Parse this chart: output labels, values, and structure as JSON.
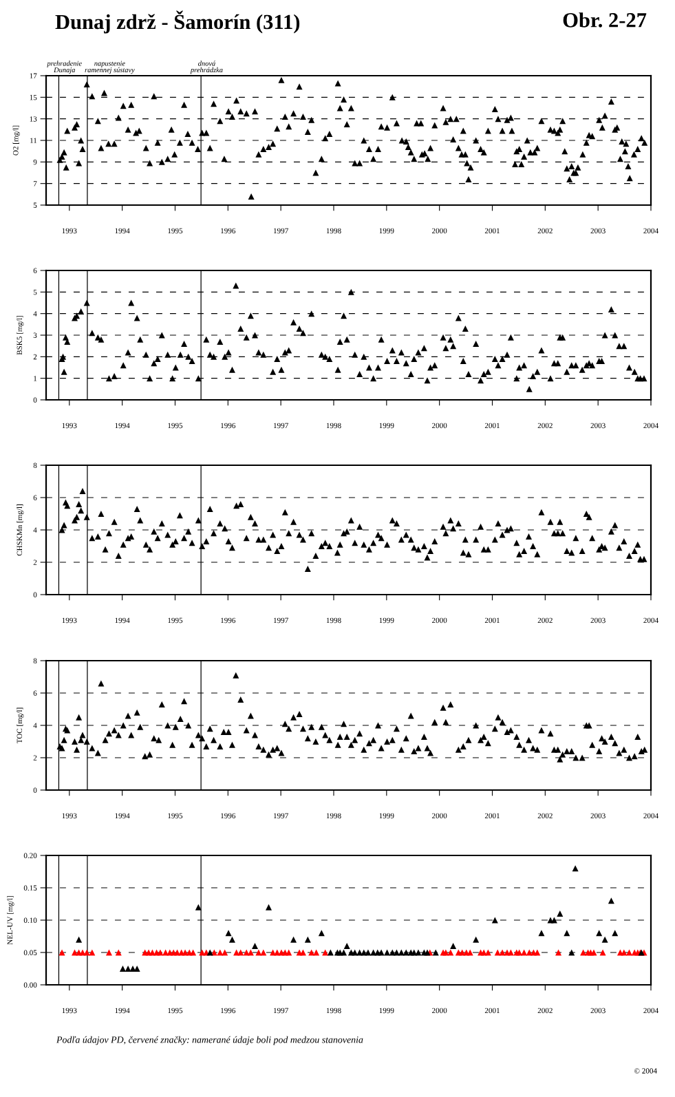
{
  "chart_data": [
    {
      "type": "scatter",
      "title": "Dunaj zdrž - Šamorín (311)",
      "subtitle": "Obr. 2-27",
      "ylabel": "O2 [mg/l]",
      "xlim": [
        1992.56,
        2004.0
      ],
      "xticks": [
        1993,
        1994,
        1995,
        1996,
        1997,
        1998,
        1999,
        2000,
        2001,
        2002,
        2003,
        2004
      ],
      "ylim": [
        5,
        17
      ],
      "yticks": [
        5,
        7,
        9,
        11,
        13,
        15,
        17
      ],
      "grid": "y",
      "marker": "triangle",
      "ref_lines": [
        {
          "axis": "x",
          "value": 1992.8,
          "label": "prehradenie Dunaja",
          "color": "#000000"
        },
        {
          "axis": "x",
          "value": 1993.34,
          "label": "napustenie ramennej sústavy",
          "color": "#000000"
        },
        {
          "axis": "x",
          "value": 1995.49,
          "label": "dnová prehrádzka",
          "color": "#000000"
        }
      ],
      "series": [
        {
          "color": "#000000",
          "x": [
            1992.82,
            1992.86,
            1992.9,
            1992.94,
            1992.96,
            1993.1,
            1993.14,
            1993.18,
            1993.22,
            1993.25,
            1993.33,
            1993.43,
            1993.54,
            1993.6,
            1993.66,
            1993.74,
            1993.85,
            1993.93,
            1994.02,
            1994.11,
            1994.17,
            1994.26,
            1994.32,
            1994.45,
            1994.52,
            1994.6,
            1994.67,
            1994.75,
            1994.86,
            1994.93,
            1994.99,
            1995.09,
            1995.17,
            1995.24,
            1995.32,
            1995.43,
            1995.51,
            1995.59,
            1995.66,
            1995.73,
            1995.85,
            1995.93,
            1996.01,
            1996.08,
            1996.16,
            1996.24,
            1996.35,
            1996.44,
            1996.51,
            1996.58,
            1996.67,
            1996.77,
            1996.85,
            1996.93,
            1997.01,
            1997.08,
            1997.15,
            1997.24,
            1997.35,
            1997.42,
            1997.51,
            1997.58,
            1997.66,
            1997.77,
            1997.84,
            1997.92,
            1998.08,
            1998.12,
            1998.19,
            1998.25,
            1998.33,
            1998.4,
            1998.49,
            1998.57,
            1998.67,
            1998.75,
            1998.84,
            1998.9,
            1999.01,
            1999.11,
            1999.19,
            1999.29,
            1999.37,
            1999.41,
            1999.46,
            1999.52,
            1999.57,
            1999.65,
            1999.67,
            1999.72,
            1999.78,
            1999.83,
            1999.91,
            2000.07,
            2000.12,
            2000.21,
            2000.32,
            2000.26,
            2000.36,
            2000.42,
            2000.45,
            2000.49,
            2000.52,
            2000.59,
            2000.55,
            2000.69,
            2000.78,
            2000.84,
            2000.92,
            2001.05,
            2001.11,
            2001.19,
            2001.28,
            2001.35,
            2001.37,
            2001.43,
            2001.46,
            2001.51,
            2001.55,
            2001.6,
            2001.66,
            2001.72,
            2001.8,
            2001.85,
            2001.93,
            2002.1,
            2002.17,
            2002.24,
            2002.28,
            2002.33,
            2002.37,
            2002.41,
            2002.46,
            2002.5,
            2002.54,
            2002.58,
            2002.62,
            2002.71,
            2002.78,
            2002.83,
            2002.89,
            2003.02,
            2003.08,
            2003.13,
            2003.25,
            2003.32,
            2003.36,
            2003.42,
            2003.45,
            2003.51,
            2003.53,
            2003.57,
            2003.6,
            2003.68,
            2003.75,
            2003.82,
            2003.88
          ],
          "values": [
            9.2,
            9.5,
            9.9,
            8.5,
            11.9,
            12.2,
            12.5,
            8.9,
            11.0,
            10.2,
            16.2,
            15.1,
            12.8,
            10.3,
            15.4,
            10.7,
            10.7,
            13.1,
            14.2,
            12.0,
            14.3,
            11.7,
            11.9,
            10.3,
            8.9,
            15.1,
            10.8,
            9.0,
            9.3,
            12.0,
            9.7,
            10.8,
            14.3,
            11.6,
            10.8,
            10.2,
            11.7,
            11.7,
            10.3,
            14.4,
            12.8,
            9.3,
            13.7,
            13.2,
            14.7,
            13.7,
            13.5,
            5.8,
            13.7,
            9.7,
            10.2,
            10.4,
            10.7,
            12.1,
            16.6,
            13.2,
            12.3,
            13.5,
            16.0,
            13.2,
            11.8,
            12.9,
            8.0,
            9.3,
            11.2,
            11.6,
            16.3,
            14.0,
            14.8,
            12.5,
            14.0,
            8.9,
            8.9,
            11.0,
            10.2,
            9.3,
            10.2,
            12.3,
            12.2,
            15.0,
            12.6,
            11.0,
            10.9,
            10.4,
            9.9,
            9.3,
            12.6,
            12.6,
            9.7,
            9.8,
            9.3,
            10.3,
            12.4,
            14.0,
            12.7,
            13.0,
            13.0,
            11.1,
            10.3,
            9.7,
            11.9,
            9.7,
            8.9,
            8.5,
            7.4,
            11.0,
            10.2,
            9.9,
            11.9,
            13.9,
            13.0,
            11.9,
            12.9,
            13.1,
            11.9,
            8.8,
            10.0,
            10.2,
            8.8,
            9.5,
            11.0,
            9.9,
            9.9,
            10.3,
            12.8,
            12.0,
            11.9,
            11.7,
            12.0,
            12.8,
            10.0,
            8.4,
            7.4,
            8.6,
            8.0,
            8.0,
            8.5,
            9.7,
            10.8,
            11.5,
            11.4,
            12.9,
            12.2,
            13.3,
            14.6,
            12.0,
            12.2,
            9.3,
            10.9,
            10.0,
            10.7,
            8.6,
            7.5,
            9.7,
            10.2,
            11.2,
            10.8
          ]
        }
      ]
    },
    {
      "type": "scatter",
      "ylabel": "BSK5 [mg/l]",
      "xlim": [
        1992.56,
        2004.0
      ],
      "xticks": [
        1993,
        1994,
        1995,
        1996,
        1997,
        1998,
        1999,
        2000,
        2001,
        2002,
        2003,
        2004
      ],
      "ylim": [
        0,
        6
      ],
      "yticks": [
        0,
        1,
        2,
        3,
        4,
        5,
        6
      ],
      "grid": "y",
      "marker": "triangle",
      "ref_lines": [
        {
          "axis": "x",
          "value": 1992.8,
          "color": "#000000"
        },
        {
          "axis": "x",
          "value": 1993.34,
          "color": "#000000"
        },
        {
          "axis": "x",
          "value": 1995.49,
          "color": "#000000"
        }
      ],
      "series": [
        {
          "color": "#000000",
          "x": [
            1992.86,
            1992.88,
            1992.9,
            1992.93,
            1992.96,
            1993.1,
            1993.14,
            1993.22,
            1993.33,
            1993.43,
            1993.54,
            1993.6,
            1993.75,
            1993.85,
            1994.02,
            1994.11,
            1994.17,
            1994.28,
            1994.34,
            1994.45,
            1994.52,
            1994.6,
            1994.67,
            1994.75,
            1994.86,
            1994.95,
            1995.01,
            1995.1,
            1995.17,
            1995.25,
            1995.32,
            1995.44,
            1995.59,
            1995.66,
            1995.73,
            1995.85,
            1995.94,
            1996.01,
            1996.08,
            1996.15,
            1996.24,
            1996.35,
            1996.43,
            1996.51,
            1996.58,
            1996.67,
            1996.85,
            1996.93,
            1997.01,
            1997.08,
            1997.15,
            1997.24,
            1997.35,
            1997.42,
            1997.58,
            1997.77,
            1997.84,
            1997.92,
            1998.08,
            1998.12,
            1998.19,
            1998.25,
            1998.33,
            1998.4,
            1998.49,
            1998.57,
            1998.67,
            1998.75,
            1998.84,
            1998.9,
            1999.01,
            1999.11,
            1999.19,
            1999.28,
            1999.37,
            1999.46,
            1999.52,
            1999.6,
            1999.71,
            1999.77,
            1999.83,
            1999.91,
            2000.07,
            2000.12,
            2000.21,
            2000.26,
            2000.36,
            2000.45,
            2000.49,
            2000.55,
            2000.69,
            2000.78,
            2000.84,
            2000.92,
            2001.05,
            2001.11,
            2001.19,
            2001.28,
            2001.35,
            2001.46,
            2001.51,
            2001.6,
            2001.7,
            2001.77,
            2001.85,
            2001.93,
            2002.1,
            2002.17,
            2002.24,
            2002.28,
            2002.33,
            2002.41,
            2002.5,
            2002.58,
            2002.7,
            2002.78,
            2002.83,
            2002.89,
            2003.02,
            2003.07,
            2003.13,
            2003.25,
            2003.32,
            2003.4,
            2003.49,
            2003.59,
            2003.69,
            2003.75,
            2003.8,
            2003.87
          ],
          "values": [
            1.9,
            2.0,
            1.3,
            2.9,
            2.7,
            3.8,
            3.9,
            4.1,
            4.5,
            3.1,
            2.9,
            2.8,
            1.0,
            1.1,
            1.6,
            2.2,
            4.5,
            3.8,
            2.8,
            2.1,
            1.0,
            1.7,
            1.9,
            3.0,
            2.1,
            1.0,
            1.5,
            2.1,
            2.6,
            2.0,
            1.8,
            1.0,
            2.8,
            2.1,
            2.0,
            2.7,
            2.0,
            2.2,
            1.4,
            5.3,
            3.3,
            2.9,
            3.9,
            3.0,
            2.2,
            2.1,
            1.3,
            1.9,
            1.4,
            2.2,
            2.3,
            3.6,
            3.3,
            3.1,
            4.0,
            2.1,
            2.0,
            1.9,
            1.4,
            2.7,
            3.9,
            2.8,
            5.0,
            2.1,
            1.2,
            2.0,
            1.5,
            1.0,
            1.5,
            2.8,
            1.8,
            2.3,
            1.8,
            2.2,
            1.7,
            1.2,
            1.9,
            2.2,
            2.4,
            0.9,
            1.5,
            1.6,
            2.9,
            2.4,
            2.8,
            2.5,
            3.8,
            1.8,
            3.3,
            1.2,
            2.6,
            0.9,
            1.2,
            1.3,
            1.9,
            1.6,
            1.9,
            2.1,
            2.9,
            1.0,
            1.5,
            1.6,
            0.5,
            1.1,
            1.3,
            2.3,
            1.0,
            1.7,
            1.7,
            2.9,
            2.9,
            1.3,
            1.6,
            1.6,
            1.4,
            1.6,
            1.7,
            1.6,
            1.8,
            1.8,
            3.0,
            4.2,
            3.0,
            2.5,
            2.5,
            1.5,
            1.3,
            1.0,
            1.0,
            1.0
          ]
        }
      ]
    },
    {
      "type": "scatter",
      "ylabel": "CHSKMn [mg/l]",
      "xlim": [
        1992.56,
        2004.0
      ],
      "xticks": [
        1993,
        1994,
        1995,
        1996,
        1997,
        1998,
        1999,
        2000,
        2001,
        2002,
        2003,
        2004
      ],
      "ylim": [
        0,
        8
      ],
      "yticks": [
        0,
        2,
        4,
        6,
        8
      ],
      "grid": "y",
      "marker": "triangle",
      "ref_lines": [
        {
          "axis": "x",
          "value": 1992.8,
          "color": "#000000"
        },
        {
          "axis": "x",
          "value": 1993.34,
          "color": "#000000"
        },
        {
          "axis": "x",
          "value": 1995.49,
          "color": "#000000"
        }
      ],
      "series": [
        {
          "color": "#000000",
          "x": [
            1992.86,
            1992.9,
            1992.93,
            1992.96,
            1993.1,
            1993.14,
            1993.18,
            1993.22,
            1993.25,
            1993.33,
            1993.43,
            1993.54,
            1993.6,
            1993.68,
            1993.75,
            1993.85,
            1993.93,
            1994.02,
            1994.11,
            1994.17,
            1994.28,
            1994.34,
            1994.45,
            1994.52,
            1994.6,
            1994.67,
            1994.75,
            1994.86,
            1994.95,
            1995.01,
            1995.09,
            1995.17,
            1995.25,
            1995.32,
            1995.44,
            1995.51,
            1995.59,
            1995.66,
            1995.73,
            1995.85,
            1995.94,
            1996.01,
            1996.08,
            1996.16,
            1996.24,
            1996.35,
            1996.43,
            1996.51,
            1996.58,
            1996.67,
            1996.77,
            1996.85,
            1996.93,
            1997.01,
            1997.08,
            1997.15,
            1997.24,
            1997.35,
            1997.42,
            1997.51,
            1997.58,
            1997.66,
            1997.77,
            1997.84,
            1997.92,
            1998.07,
            1998.12,
            1998.19,
            1998.25,
            1998.33,
            1998.4,
            1998.49,
            1998.57,
            1998.67,
            1998.75,
            1998.84,
            1998.9,
            1999.01,
            1999.11,
            1999.19,
            1999.28,
            1999.37,
            1999.46,
            1999.52,
            1999.6,
            1999.71,
            1999.77,
            1999.83,
            1999.91,
            2000.07,
            2000.12,
            2000.21,
            2000.26,
            2000.36,
            2000.45,
            2000.49,
            2000.55,
            2000.69,
            2000.78,
            2000.84,
            2000.92,
            2001.05,
            2001.11,
            2001.19,
            2001.28,
            2001.35,
            2001.46,
            2001.51,
            2001.6,
            2001.69,
            2001.77,
            2001.85,
            2001.93,
            2002.1,
            2002.17,
            2002.24,
            2002.28,
            2002.33,
            2002.41,
            2002.5,
            2002.58,
            2002.7,
            2002.78,
            2002.83,
            2002.89,
            2003.02,
            2003.07,
            2003.13,
            2003.25,
            2003.32,
            2003.4,
            2003.49,
            2003.59,
            2003.69,
            2003.75,
            2003.8,
            2003.87
          ],
          "values": [
            4.0,
            4.3,
            5.7,
            5.5,
            4.6,
            4.8,
            5.6,
            5.2,
            6.4,
            4.8,
            3.5,
            3.6,
            5.0,
            2.8,
            3.8,
            4.5,
            2.4,
            3.1,
            3.5,
            3.6,
            5.3,
            4.6,
            3.1,
            2.8,
            3.9,
            3.5,
            4.4,
            3.7,
            3.1,
            3.3,
            4.9,
            3.5,
            3.9,
            3.2,
            4.6,
            3.0,
            3.3,
            5.3,
            3.8,
            4.4,
            4.1,
            3.3,
            2.9,
            5.5,
            5.6,
            3.5,
            4.8,
            4.4,
            3.4,
            3.4,
            2.9,
            3.7,
            2.7,
            3.0,
            5.1,
            3.8,
            4.5,
            3.7,
            3.4,
            1.6,
            3.8,
            2.4,
            3.0,
            3.2,
            3.0,
            2.6,
            3.1,
            3.8,
            3.9,
            4.6,
            3.2,
            4.2,
            3.1,
            2.8,
            3.2,
            3.7,
            3.5,
            3.1,
            4.6,
            4.4,
            3.4,
            3.7,
            3.4,
            2.9,
            2.8,
            3.0,
            2.3,
            2.7,
            3.3,
            4.2,
            3.8,
            4.6,
            4.1,
            4.4,
            2.6,
            3.4,
            2.5,
            3.4,
            4.2,
            2.8,
            2.8,
            3.4,
            4.4,
            3.7,
            4.0,
            4.1,
            3.2,
            2.5,
            2.7,
            3.6,
            3.0,
            2.5,
            5.1,
            4.5,
            3.8,
            3.8,
            4.5,
            3.8,
            2.7,
            2.6,
            3.5,
            2.7,
            5.0,
            4.8,
            3.5,
            2.8,
            3.0,
            2.9,
            3.9,
            4.3,
            2.9,
            3.3,
            2.4,
            2.7,
            3.1,
            2.2,
            2.2
          ]
        }
      ]
    },
    {
      "type": "scatter",
      "ylabel": "TOC [mg/l]",
      "xlim": [
        1992.56,
        2004.0
      ],
      "xticks": [
        1993,
        1994,
        1995,
        1996,
        1997,
        1998,
        1999,
        2000,
        2001,
        2002,
        2003,
        2004
      ],
      "ylim": [
        0,
        8
      ],
      "yticks": [
        0,
        2,
        4,
        6,
        8
      ],
      "grid": "y",
      "marker": "triangle",
      "ref_lines": [
        {
          "axis": "x",
          "value": 1992.8,
          "color": "#000000"
        },
        {
          "axis": "x",
          "value": 1993.34,
          "color": "#000000"
        },
        {
          "axis": "x",
          "value": 1995.49,
          "color": "#000000"
        }
      ],
      "series": [
        {
          "color": "#000000",
          "x": [
            1992.82,
            1992.86,
            1992.9,
            1992.93,
            1992.96,
            1993.1,
            1993.14,
            1993.18,
            1993.22,
            1993.25,
            1993.33,
            1993.43,
            1993.54,
            1993.6,
            1993.68,
            1993.75,
            1993.85,
            1993.93,
            1994.02,
            1994.11,
            1994.17,
            1994.28,
            1994.34,
            1994.43,
            1994.52,
            1994.6,
            1994.69,
            1994.75,
            1994.86,
            1994.95,
            1995.01,
            1995.1,
            1995.17,
            1995.25,
            1995.32,
            1995.44,
            1995.51,
            1995.59,
            1995.66,
            1995.73,
            1995.85,
            1995.92,
            1996.01,
            1996.08,
            1996.15,
            1996.24,
            1996.35,
            1996.43,
            1996.51,
            1996.58,
            1996.67,
            1996.77,
            1996.85,
            1996.93,
            1997.01,
            1997.08,
            1997.15,
            1997.24,
            1997.35,
            1997.42,
            1997.51,
            1997.58,
            1997.66,
            1997.77,
            1997.84,
            1997.92,
            1998.08,
            1998.12,
            1998.19,
            1998.25,
            1998.33,
            1998.4,
            1998.49,
            1998.57,
            1998.67,
            1998.75,
            1998.84,
            1998.9,
            1999.01,
            1999.11,
            1999.19,
            1999.28,
            1999.37,
            1999.46,
            1999.52,
            1999.6,
            1999.71,
            1999.77,
            1999.83,
            1999.91,
            2000.07,
            2000.12,
            2000.21,
            2000.36,
            2000.45,
            2000.55,
            2000.69,
            2000.78,
            2000.84,
            2000.92,
            2001.05,
            2001.11,
            2001.19,
            2001.28,
            2001.35,
            2001.46,
            2001.51,
            2001.6,
            2001.69,
            2001.77,
            2001.85,
            2001.93,
            2002.1,
            2002.17,
            2002.24,
            2002.28,
            2002.33,
            2002.41,
            2002.5,
            2002.58,
            2002.7,
            2002.78,
            2002.83,
            2002.89,
            2003.02,
            2003.07,
            2003.13,
            2003.25,
            2003.32,
            2003.4,
            2003.49,
            2003.59,
            2003.69,
            2003.75,
            2003.82,
            2003.88
          ],
          "values": [
            2.7,
            2.6,
            3.1,
            3.8,
            3.7,
            3.0,
            2.5,
            4.5,
            3.1,
            3.4,
            3.0,
            2.6,
            2.3,
            6.6,
            3.1,
            3.5,
            3.7,
            3.4,
            4.0,
            4.6,
            3.4,
            4.8,
            3.9,
            2.1,
            2.2,
            3.2,
            3.1,
            5.3,
            4.0,
            2.8,
            3.9,
            4.4,
            5.5,
            4.0,
            2.8,
            3.4,
            3.2,
            2.7,
            3.8,
            3.1,
            2.7,
            3.6,
            3.6,
            2.8,
            7.1,
            5.6,
            3.7,
            4.6,
            3.4,
            2.7,
            2.5,
            2.2,
            2.5,
            2.6,
            2.3,
            4.1,
            3.8,
            4.5,
            4.7,
            3.8,
            3.2,
            3.9,
            3.0,
            3.9,
            3.4,
            3.1,
            2.8,
            3.3,
            4.1,
            3.3,
            2.8,
            3.1,
            3.5,
            2.5,
            2.9,
            3.1,
            4.0,
            2.6,
            3.0,
            3.1,
            3.8,
            2.5,
            3.2,
            4.6,
            2.4,
            2.6,
            3.3,
            2.6,
            2.3,
            4.2,
            5.1,
            4.2,
            5.3,
            2.5,
            2.7,
            3.1,
            4.0,
            3.1,
            3.3,
            2.9,
            3.8,
            4.5,
            4.2,
            3.6,
            3.7,
            3.3,
            2.8,
            2.5,
            3.1,
            2.6,
            2.5,
            3.7,
            3.5,
            2.5,
            2.5,
            1.9,
            2.2,
            2.4,
            2.4,
            2.0,
            2.0,
            4.0,
            4.0,
            2.8,
            2.4,
            3.2,
            3.0,
            3.3,
            2.9,
            2.3,
            2.5,
            2.0,
            2.1,
            3.3,
            2.4,
            2.5
          ]
        }
      ]
    },
    {
      "type": "scatter",
      "ylabel": "NEL-UV [mg/l]",
      "xlim": [
        1992.56,
        2004.0
      ],
      "xticks": [
        1993,
        1994,
        1995,
        1996,
        1997,
        1998,
        1999,
        2000,
        2001,
        2002,
        2003,
        2004
      ],
      "ylim": [
        0,
        0.2
      ],
      "yticks": [
        {
          "value": 0,
          "label": "0.00"
        },
        {
          "value": 0.05,
          "label": "0.05"
        },
        {
          "value": 0.1,
          "label": "0.10"
        },
        {
          "value": 0.15,
          "label": "0.15"
        },
        {
          "value": 0.2,
          "label": "0.20"
        }
      ],
      "grid": "y",
      "marker": "triangle",
      "ref_lines": [
        {
          "axis": "x",
          "value": 1992.8,
          "color": "#000000"
        },
        {
          "axis": "x",
          "value": 1993.34,
          "color": "#000000"
        },
        {
          "axis": "x",
          "value": 1995.49,
          "color": "#000000"
        }
      ],
      "annotations": [
        "Podľa údajov PD, červené značky: namerané údaje boli pod medzou stanovenia",
        "© 2004"
      ],
      "series": [
        {
          "color": "#ff0000",
          "x": [
            1992.86,
            1993.1,
            1993.18,
            1993.25,
            1993.33,
            1993.43,
            1993.75,
            1993.93,
            1994.43,
            1994.5,
            1994.57,
            1994.65,
            1994.72,
            1994.82,
            1994.9,
            1994.97,
            1995.04,
            1995.12,
            1995.19,
            1995.27,
            1995.34,
            1995.51,
            1995.59,
            1995.74,
            1995.85,
            1995.94,
            1996.16,
            1996.24,
            1996.35,
            1996.43,
            1996.58,
            1996.67,
            1996.85,
            1996.93,
            1997.01,
            1997.08,
            1997.15,
            1997.35,
            1997.42,
            1997.58,
            1997.67,
            1997.84,
            1999.82,
            2000.07,
            2000.12,
            2000.21,
            2000.36,
            2000.43,
            2000.51,
            2000.58,
            2000.78,
            2000.84,
            2000.92,
            2001.1,
            2001.19,
            2001.28,
            2001.35,
            2001.46,
            2001.51,
            2001.6,
            2001.7,
            2001.78,
            2001.85,
            2002.25,
            2002.72,
            2002.81,
            2002.86,
            2002.92,
            2003.09,
            2003.42,
            2003.49,
            2003.59,
            2003.69,
            2003.75,
            2003.8,
            2003.87
          ],
          "values": [
            0.05,
            0.05,
            0.05,
            0.05,
            0.05,
            0.05,
            0.05,
            0.05,
            0.05,
            0.05,
            0.05,
            0.05,
            0.05,
            0.05,
            0.05,
            0.05,
            0.05,
            0.05,
            0.05,
            0.05,
            0.05,
            0.05,
            0.05,
            0.05,
            0.05,
            0.05,
            0.05,
            0.05,
            0.05,
            0.05,
            0.05,
            0.05,
            0.05,
            0.05,
            0.05,
            0.05,
            0.05,
            0.05,
            0.05,
            0.05,
            0.05,
            0.05,
            0.05,
            0.05,
            0.05,
            0.05,
            0.05,
            0.05,
            0.05,
            0.05,
            0.05,
            0.05,
            0.05,
            0.05,
            0.05,
            0.05,
            0.05,
            0.05,
            0.05,
            0.05,
            0.05,
            0.05,
            0.05,
            0.05,
            0.05,
            0.05,
            0.05,
            0.05,
            0.05,
            0.05,
            0.05,
            0.05,
            0.05,
            0.05,
            0.05,
            0.05
          ]
        },
        {
          "color": "#000000",
          "x": [
            1993.18,
            1994.01,
            1994.11,
            1994.2,
            1994.28,
            1995.44,
            1995.66,
            1996.01,
            1996.08,
            1996.51,
            1996.77,
            1997.24,
            1997.51,
            1997.77,
            1997.94,
            1998.07,
            1998.12,
            1998.19,
            1998.25,
            1998.33,
            1998.4,
            1998.49,
            1998.57,
            1998.65,
            1998.75,
            1998.83,
            1998.9,
            1999.01,
            1999.11,
            1999.19,
            1999.28,
            1999.37,
            1999.46,
            1999.52,
            1999.6,
            1999.71,
            1999.77,
            1999.93,
            2000.26,
            2000.69,
            2001.05,
            2001.93,
            2002.1,
            2002.17,
            2002.28,
            2002.41,
            2002.5,
            2002.57,
            2003.02,
            2003.13,
            2003.25,
            2003.32,
            2003.82
          ],
          "values": [
            0.07,
            0.025,
            0.025,
            0.025,
            0.025,
            0.12,
            0.05,
            0.08,
            0.07,
            0.06,
            0.12,
            0.07,
            0.07,
            0.08,
            0.05,
            0.05,
            0.05,
            0.05,
            0.06,
            0.05,
            0.05,
            0.05,
            0.05,
            0.05,
            0.05,
            0.05,
            0.05,
            0.05,
            0.05,
            0.05,
            0.05,
            0.05,
            0.05,
            0.05,
            0.05,
            0.05,
            0.05,
            0.05,
            0.06,
            0.07,
            0.1,
            0.08,
            0.1,
            0.1,
            0.11,
            0.08,
            0.05,
            0.18,
            0.08,
            0.07,
            0.13,
            0.08,
            0.05
          ]
        }
      ]
    }
  ]
}
